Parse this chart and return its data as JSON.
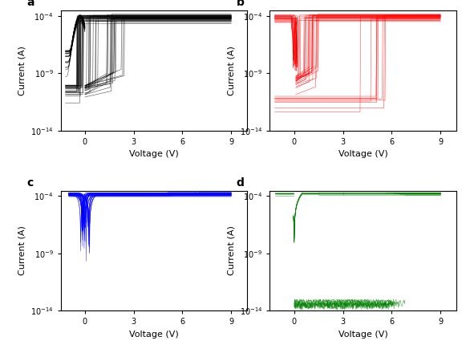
{
  "panels": [
    "a",
    "b",
    "c",
    "d"
  ],
  "colors": [
    "black",
    "red",
    "blue",
    "green"
  ],
  "xlim": [
    -1.5,
    10.0
  ],
  "ylim_low": 1e-14,
  "ylim_high": 0.0003,
  "yticks": [
    1e-14,
    1e-09,
    0.0001
  ],
  "ytick_labels": [
    "10$^{-14}$",
    "10$^{-9}$",
    "10$^{-4}$"
  ],
  "xticks": [
    0,
    3,
    6,
    9
  ],
  "xlabel": "Voltage (V)",
  "ylabel": "Current (A)",
  "background_color": "#ffffff",
  "seed": 42
}
